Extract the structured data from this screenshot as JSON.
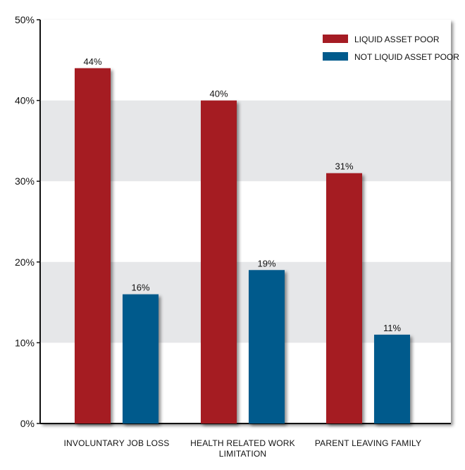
{
  "chart_data": {
    "type": "bar",
    "categories": [
      [
        "INVOLUNTARY JOB LOSS"
      ],
      [
        "HEALTH RELATED WORK",
        "LIMITATION"
      ],
      [
        "PARENT LEAVING FAMILY"
      ]
    ],
    "series": [
      {
        "name": "LIQUID ASSET POOR",
        "values": [
          44,
          40,
          31
        ],
        "labels": [
          "44%",
          "40%",
          "31%"
        ],
        "color": "#a51c24"
      },
      {
        "name": "NOT LIQUID ASSET POOR",
        "values": [
          16,
          19,
          11
        ],
        "labels": [
          "16%",
          "19%",
          "11%"
        ],
        "color": "#005a8c"
      }
    ],
    "ylim": [
      0,
      50
    ],
    "yticks": [
      0,
      10,
      20,
      30,
      40,
      50
    ],
    "ytick_labels": [
      "0%",
      "10%",
      "20%",
      "30%",
      "40%",
      "50%"
    ],
    "bands": [
      [
        10,
        20
      ],
      [
        30,
        40
      ]
    ],
    "band_color": "#e6e7e9",
    "legend": "top-right",
    "title": "",
    "xlabel": "",
    "ylabel": ""
  }
}
